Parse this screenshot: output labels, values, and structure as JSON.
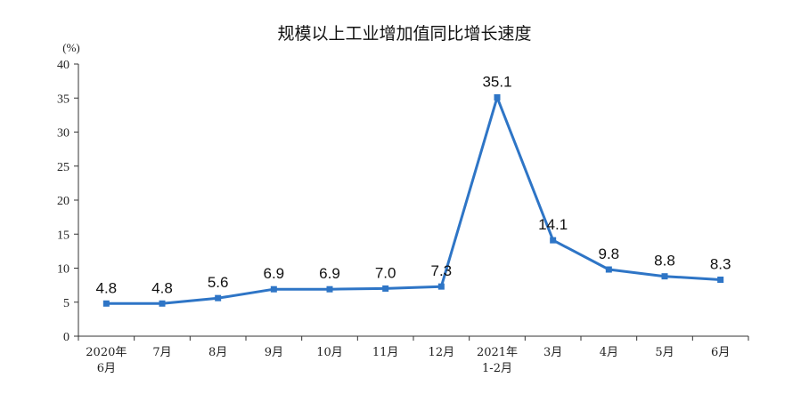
{
  "chart_data": {
    "type": "line",
    "title": "规模以上工业增加值同比增长速度",
    "yunit": "(%)",
    "ylim": [
      0,
      40
    ],
    "yticks": [
      0,
      5,
      10,
      15,
      20,
      25,
      30,
      35,
      40
    ],
    "categories": [
      [
        "2020年",
        "6月"
      ],
      [
        "7月"
      ],
      [
        "8月"
      ],
      [
        "9月"
      ],
      [
        "10月"
      ],
      [
        "11月"
      ],
      [
        "12月"
      ],
      [
        "2021年",
        "1-2月"
      ],
      [
        "3月"
      ],
      [
        "4月"
      ],
      [
        "5月"
      ],
      [
        "6月"
      ]
    ],
    "values": [
      4.8,
      4.8,
      5.6,
      6.9,
      6.9,
      7.0,
      7.3,
      35.1,
      14.1,
      9.8,
      8.8,
      8.3
    ],
    "data_labels": [
      "4.8",
      "4.8",
      "5.6",
      "6.9",
      "6.9",
      "7.0",
      "7.3",
      "35.1",
      "14.1",
      "9.8",
      "8.8",
      "8.3"
    ],
    "line_color": "#2e75c6",
    "grid": false,
    "legend": "none"
  }
}
